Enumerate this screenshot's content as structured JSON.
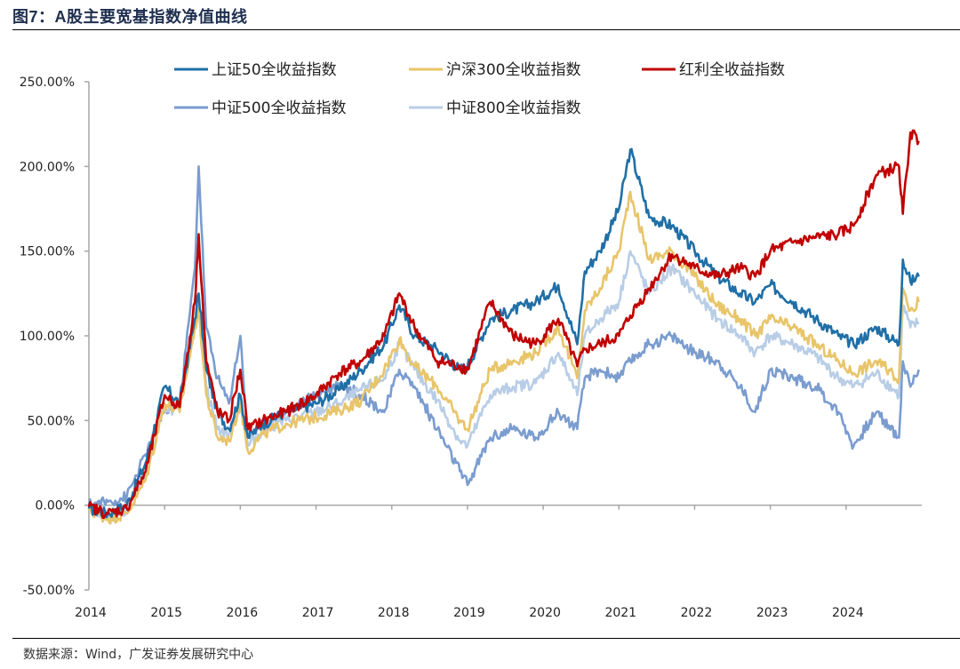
{
  "figure": {
    "title": "图7：A股主要宽基指数净值曲线",
    "source": "数据来源：Wind，广发证券发展研究中心"
  },
  "chart_data": {
    "type": "line",
    "title": "A股主要宽基指数净值曲线",
    "xlabel": "",
    "ylabel": "",
    "x_ticks": [
      "2014",
      "2015",
      "2016",
      "2017",
      "2018",
      "2019",
      "2020",
      "2021",
      "2022",
      "2023",
      "2024"
    ],
    "y_ticks": [
      "-50.00%",
      "0.00%",
      "50.00%",
      "100.00%",
      "150.00%",
      "200.00%",
      "250.00%"
    ],
    "xlim": [
      2014.0,
      2025.0
    ],
    "ylim": [
      -50,
      250
    ],
    "y_unit": "%",
    "grid": false,
    "legend_position": "top",
    "x": [
      2014.0,
      2014.25,
      2014.5,
      2014.75,
      2015.0,
      2015.2,
      2015.4,
      2015.45,
      2015.55,
      2015.7,
      2015.85,
      2016.0,
      2016.1,
      2016.3,
      2016.6,
      2017.0,
      2017.3,
      2017.6,
      2017.9,
      2018.1,
      2018.3,
      2018.6,
      2018.9,
      2019.0,
      2019.3,
      2019.6,
      2019.9,
      2020.2,
      2020.45,
      2020.55,
      2020.75,
      2021.0,
      2021.15,
      2021.4,
      2021.7,
      2022.0,
      2022.3,
      2022.6,
      2022.8,
      2023.0,
      2023.3,
      2023.6,
      2023.9,
      2024.1,
      2024.4,
      2024.7,
      2024.75,
      2024.85,
      2024.96
    ],
    "series": [
      {
        "name": "上证50全收益指数",
        "color": "#1f6fa6",
        "values": [
          -2,
          -5,
          0,
          25,
          70,
          60,
          110,
          125,
          80,
          55,
          45,
          65,
          40,
          48,
          55,
          60,
          68,
          80,
          95,
          118,
          100,
          92,
          80,
          82,
          110,
          115,
          120,
          130,
          95,
          138,
          150,
          175,
          210,
          170,
          165,
          150,
          135,
          125,
          120,
          130,
          120,
          110,
          100,
          95,
          105,
          95,
          145,
          132,
          135
        ]
      },
      {
        "name": "沪深300全收益指数",
        "color": "#e8c56a",
        "values": [
          -3,
          -8,
          -5,
          15,
          60,
          55,
          105,
          115,
          65,
          40,
          38,
          60,
          32,
          42,
          48,
          52,
          56,
          62,
          80,
          98,
          82,
          70,
          50,
          45,
          80,
          85,
          90,
          105,
          75,
          115,
          128,
          150,
          185,
          145,
          150,
          135,
          118,
          110,
          100,
          110,
          105,
          95,
          85,
          78,
          85,
          75,
          128,
          115,
          120
        ]
      },
      {
        "name": "红利全收益指数",
        "color": "#c00000",
        "values": [
          -1,
          -5,
          -2,
          20,
          65,
          58,
          120,
          160,
          85,
          55,
          50,
          80,
          45,
          50,
          55,
          65,
          78,
          85,
          100,
          125,
          105,
          85,
          82,
          80,
          120,
          100,
          95,
          110,
          82,
          92,
          95,
          100,
          112,
          128,
          148,
          140,
          135,
          140,
          135,
          150,
          155,
          158,
          160,
          165,
          195,
          200,
          172,
          220,
          215
        ]
      },
      {
        "name": "中证500全收益指数",
        "color": "#7a9ccf",
        "values": [
          0,
          2,
          5,
          30,
          55,
          60,
          140,
          200,
          105,
          75,
          60,
          100,
          40,
          48,
          55,
          65,
          72,
          65,
          55,
          80,
          70,
          45,
          20,
          12,
          40,
          45,
          40,
          55,
          45,
          75,
          80,
          75,
          85,
          95,
          100,
          90,
          85,
          70,
          55,
          80,
          75,
          70,
          55,
          35,
          55,
          40,
          85,
          70,
          80
        ]
      },
      {
        "name": "中证800全收益指数",
        "color": "#b8cde6",
        "values": [
          -2,
          -6,
          -3,
          18,
          58,
          56,
          108,
          118,
          70,
          45,
          42,
          62,
          35,
          45,
          50,
          55,
          60,
          68,
          75,
          95,
          80,
          62,
          38,
          35,
          65,
          70,
          72,
          90,
          65,
          100,
          110,
          120,
          150,
          125,
          140,
          125,
          110,
          100,
          90,
          100,
          95,
          88,
          75,
          70,
          78,
          65,
          118,
          105,
          108
        ]
      }
    ]
  }
}
